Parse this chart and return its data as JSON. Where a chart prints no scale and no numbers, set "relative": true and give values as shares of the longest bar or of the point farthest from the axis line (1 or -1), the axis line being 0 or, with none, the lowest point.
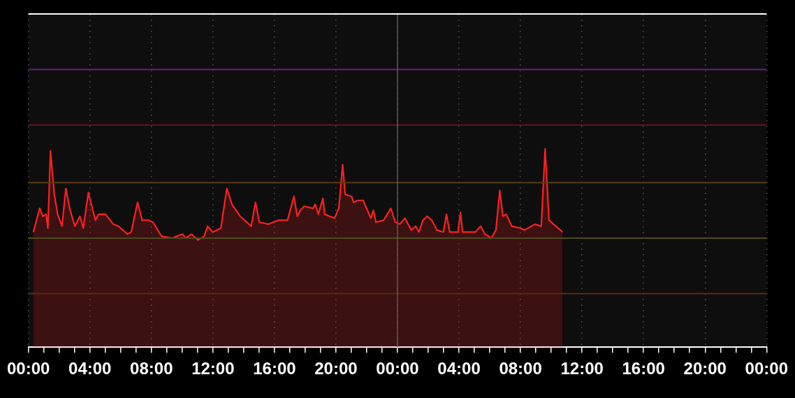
{
  "chart_data": {
    "type": "area",
    "relative": true,
    "color": "#ff2020",
    "marker": "none",
    "line_style": "solid",
    "grid": "x",
    "xlim": [
      "--01-01T00:00",
      "--01-03T00:00"
    ],
    "xticks": [
      {
        "value": "--01-01T00:00",
        "label": "00:00"
      },
      {
        "value": "--01-01T01:00",
        "label": null
      },
      {
        "value": "--01-01T02:00",
        "label": null
      },
      {
        "value": "--01-01T03:00",
        "label": null
      },
      {
        "value": "--01-01T04:00",
        "label": "04:00"
      },
      {
        "value": "--01-01T05:00",
        "label": null
      },
      {
        "value": "--01-01T06:00",
        "label": null
      },
      {
        "value": "--01-01T07:00",
        "label": null
      },
      {
        "value": "--01-01T08:00",
        "label": "08:00"
      },
      {
        "value": "--01-01T09:00",
        "label": null
      },
      {
        "value": "--01-01T10:00",
        "label": null
      },
      {
        "value": "--01-01T11:00",
        "label": null
      },
      {
        "value": "--01-01T12:00",
        "label": "12:00"
      },
      {
        "value": "--01-01T13:00",
        "label": null
      },
      {
        "value": "--01-01T14:00",
        "label": null
      },
      {
        "value": "--01-01T15:00",
        "label": null
      },
      {
        "value": "--01-01T16:00",
        "label": "16:00"
      },
      {
        "value": "--01-01T17:00",
        "label": null
      },
      {
        "value": "--01-01T18:00",
        "label": null
      },
      {
        "value": "--01-01T19:00",
        "label": null
      },
      {
        "value": "--01-01T20:00",
        "label": "20:00"
      },
      {
        "value": "--01-01T21:00",
        "label": null
      },
      {
        "value": "--01-01T22:00",
        "label": null
      },
      {
        "value": "--01-01T23:00",
        "label": null
      },
      {
        "value": "--01-02T00:00",
        "label": "00:00"
      },
      {
        "value": "--01-02T01:00",
        "label": null
      },
      {
        "value": "--01-02T02:00",
        "label": null
      },
      {
        "value": "--01-02T03:00",
        "label": null
      },
      {
        "value": "--01-02T04:00",
        "label": "04:00"
      },
      {
        "value": "--01-02T05:00",
        "label": null
      },
      {
        "value": "--01-02T06:00",
        "label": null
      },
      {
        "value": "--01-02T07:00",
        "label": null
      },
      {
        "value": "--01-02T08:00",
        "label": "08:00"
      },
      {
        "value": "--01-02T09:00",
        "label": null
      },
      {
        "value": "--01-02T10:00",
        "label": null
      },
      {
        "value": "--01-02T11:00",
        "label": null
      },
      {
        "value": "--01-02T12:00",
        "label": "12:00"
      },
      {
        "value": "--01-02T13:00",
        "label": null
      },
      {
        "value": "--01-02T14:00",
        "label": null
      },
      {
        "value": "--01-02T15:00",
        "label": null
      },
      {
        "value": "--01-02T16:00",
        "label": "16:00"
      },
      {
        "value": "--01-02T17:00",
        "label": null
      },
      {
        "value": "--01-02T18:00",
        "label": null
      },
      {
        "value": "--01-02T19:00",
        "label": null
      },
      {
        "value": "--01-02T20:00",
        "label": "20:00"
      },
      {
        "value": "--01-02T21:00",
        "label": null
      },
      {
        "value": "--01-02T22:00",
        "label": null
      },
      {
        "value": "--01-02T23:00",
        "label": null
      },
      {
        "value": "--01-03T00:00",
        "label": "00:00"
      }
    ],
    "x": [
      "--01-01T00:19",
      "--01-01T00:44",
      "--01-01T00:56",
      "--01-01T01:09",
      "--01-01T01:16",
      "--01-01T01:26",
      "--01-01T01:41",
      "--01-01T01:54",
      "--01-01T02:11",
      "--01-01T02:26",
      "--01-01T02:41",
      "--01-01T03:01",
      "--01-01T03:21",
      "--01-01T03:34",
      "--01-01T03:54",
      "--01-01T04:21",
      "--01-01T04:34",
      "--01-01T05:01",
      "--01-01T05:31",
      "--01-01T05:51",
      "--01-01T06:26",
      "--01-01T06:41",
      "--01-01T07:06",
      "--01-01T07:24",
      "--01-01T07:49",
      "--01-01T08:06",
      "--01-01T08:39",
      "--01-01T09:21",
      "--01-01T10:01",
      "--01-01T10:14",
      "--01-01T10:36",
      "--01-01T11:01",
      "--01-01T11:26",
      "--01-01T11:39",
      "--01-01T11:59",
      "--01-01T12:31",
      "--01-01T12:54",
      "--01-01T13:14",
      "--01-01T13:46",
      "--01-01T14:29",
      "--01-01T14:46",
      "--01-01T15:01",
      "--01-01T15:36",
      "--01-01T16:16",
      "--01-01T16:51",
      "--01-01T17:16",
      "--01-01T17:29",
      "--01-01T17:41",
      "--01-01T17:56",
      "--01-01T18:31",
      "--01-01T18:39",
      "--01-01T18:51",
      "--01-01T19:09",
      "--01-01T19:16",
      "--01-01T19:54",
      "--01-01T20:11",
      "--01-01T20:26",
      "--01-01T20:36",
      "--01-01T21:01",
      "--01-01T21:09",
      "--01-01T21:26",
      "--01-01T21:46",
      "--01-01T22:16",
      "--01-01T22:26",
      "--01-01T22:36",
      "--01-01T23:06",
      "--01-01T23:34",
      "--01-01T23:51",
      "--01-02T00:09",
      "--01-02T00:29",
      "--01-02T00:54",
      "--01-02T01:11",
      "--01-02T01:24",
      "--01-02T01:39",
      "--01-02T01:56",
      "--01-02T02:14",
      "--01-02T02:34",
      "--01-02T02:59",
      "--01-02T03:11",
      "--01-02T03:24",
      "--01-02T03:56",
      "--01-02T04:06",
      "--01-02T04:14",
      "--01-02T05:04",
      "--01-02T05:24",
      "--01-02T05:41",
      "--01-02T06:06",
      "--01-02T06:24",
      "--01-02T06:39",
      "--01-02T06:51",
      "--01-02T07:04",
      "--01-02T07:26",
      "--01-02T07:59",
      "--01-02T08:16",
      "--01-02T08:56",
      "--01-02T09:21",
      "--01-02T09:36",
      "--01-02T09:51",
      "--01-02T10:09",
      "--01-02T10:36",
      "--01-02T10:44"
    ],
    "values": [
      0.58,
      0.7,
      0.66,
      0.67,
      0.6,
      0.99,
      0.77,
      0.67,
      0.61,
      0.8,
      0.7,
      0.61,
      0.66,
      0.6,
      0.78,
      0.64,
      0.67,
      0.67,
      0.62,
      0.61,
      0.57,
      0.58,
      0.73,
      0.64,
      0.64,
      0.63,
      0.56,
      0.55,
      0.57,
      0.55,
      0.57,
      0.54,
      0.56,
      0.61,
      0.58,
      0.6,
      0.8,
      0.72,
      0.66,
      0.61,
      0.73,
      0.63,
      0.62,
      0.64,
      0.64,
      0.76,
      0.66,
      0.69,
      0.71,
      0.7,
      0.72,
      0.67,
      0.75,
      0.67,
      0.65,
      0.7,
      0.92,
      0.77,
      0.76,
      0.73,
      0.74,
      0.74,
      0.65,
      0.69,
      0.63,
      0.64,
      0.7,
      0.63,
      0.62,
      0.65,
      0.59,
      0.61,
      0.58,
      0.64,
      0.66,
      0.64,
      0.59,
      0.58,
      0.67,
      0.58,
      0.58,
      0.68,
      0.58,
      0.58,
      0.61,
      0.57,
      0.55,
      0.59,
      0.79,
      0.66,
      0.67,
      0.61,
      0.6,
      0.59,
      0.62,
      0.61,
      1.0,
      0.64,
      0.62,
      0.59,
      0.58
    ],
    "ref_lines": [
      {
        "axis": "y",
        "value": 1.4,
        "color": "#6e1a80"
      },
      {
        "axis": "y",
        "value": 1.12,
        "color": "#5a1616"
      },
      {
        "axis": "y",
        "value": 0.83,
        "color": "#5c3a10"
      },
      {
        "axis": "y",
        "value": 0.55,
        "color": "#4d4d12"
      },
      {
        "axis": "y",
        "value": 0.27,
        "color": "#5c2a12"
      },
      {
        "axis": "x",
        "value": "--01-02T00:00",
        "color": "#5a5a5a"
      }
    ]
  }
}
